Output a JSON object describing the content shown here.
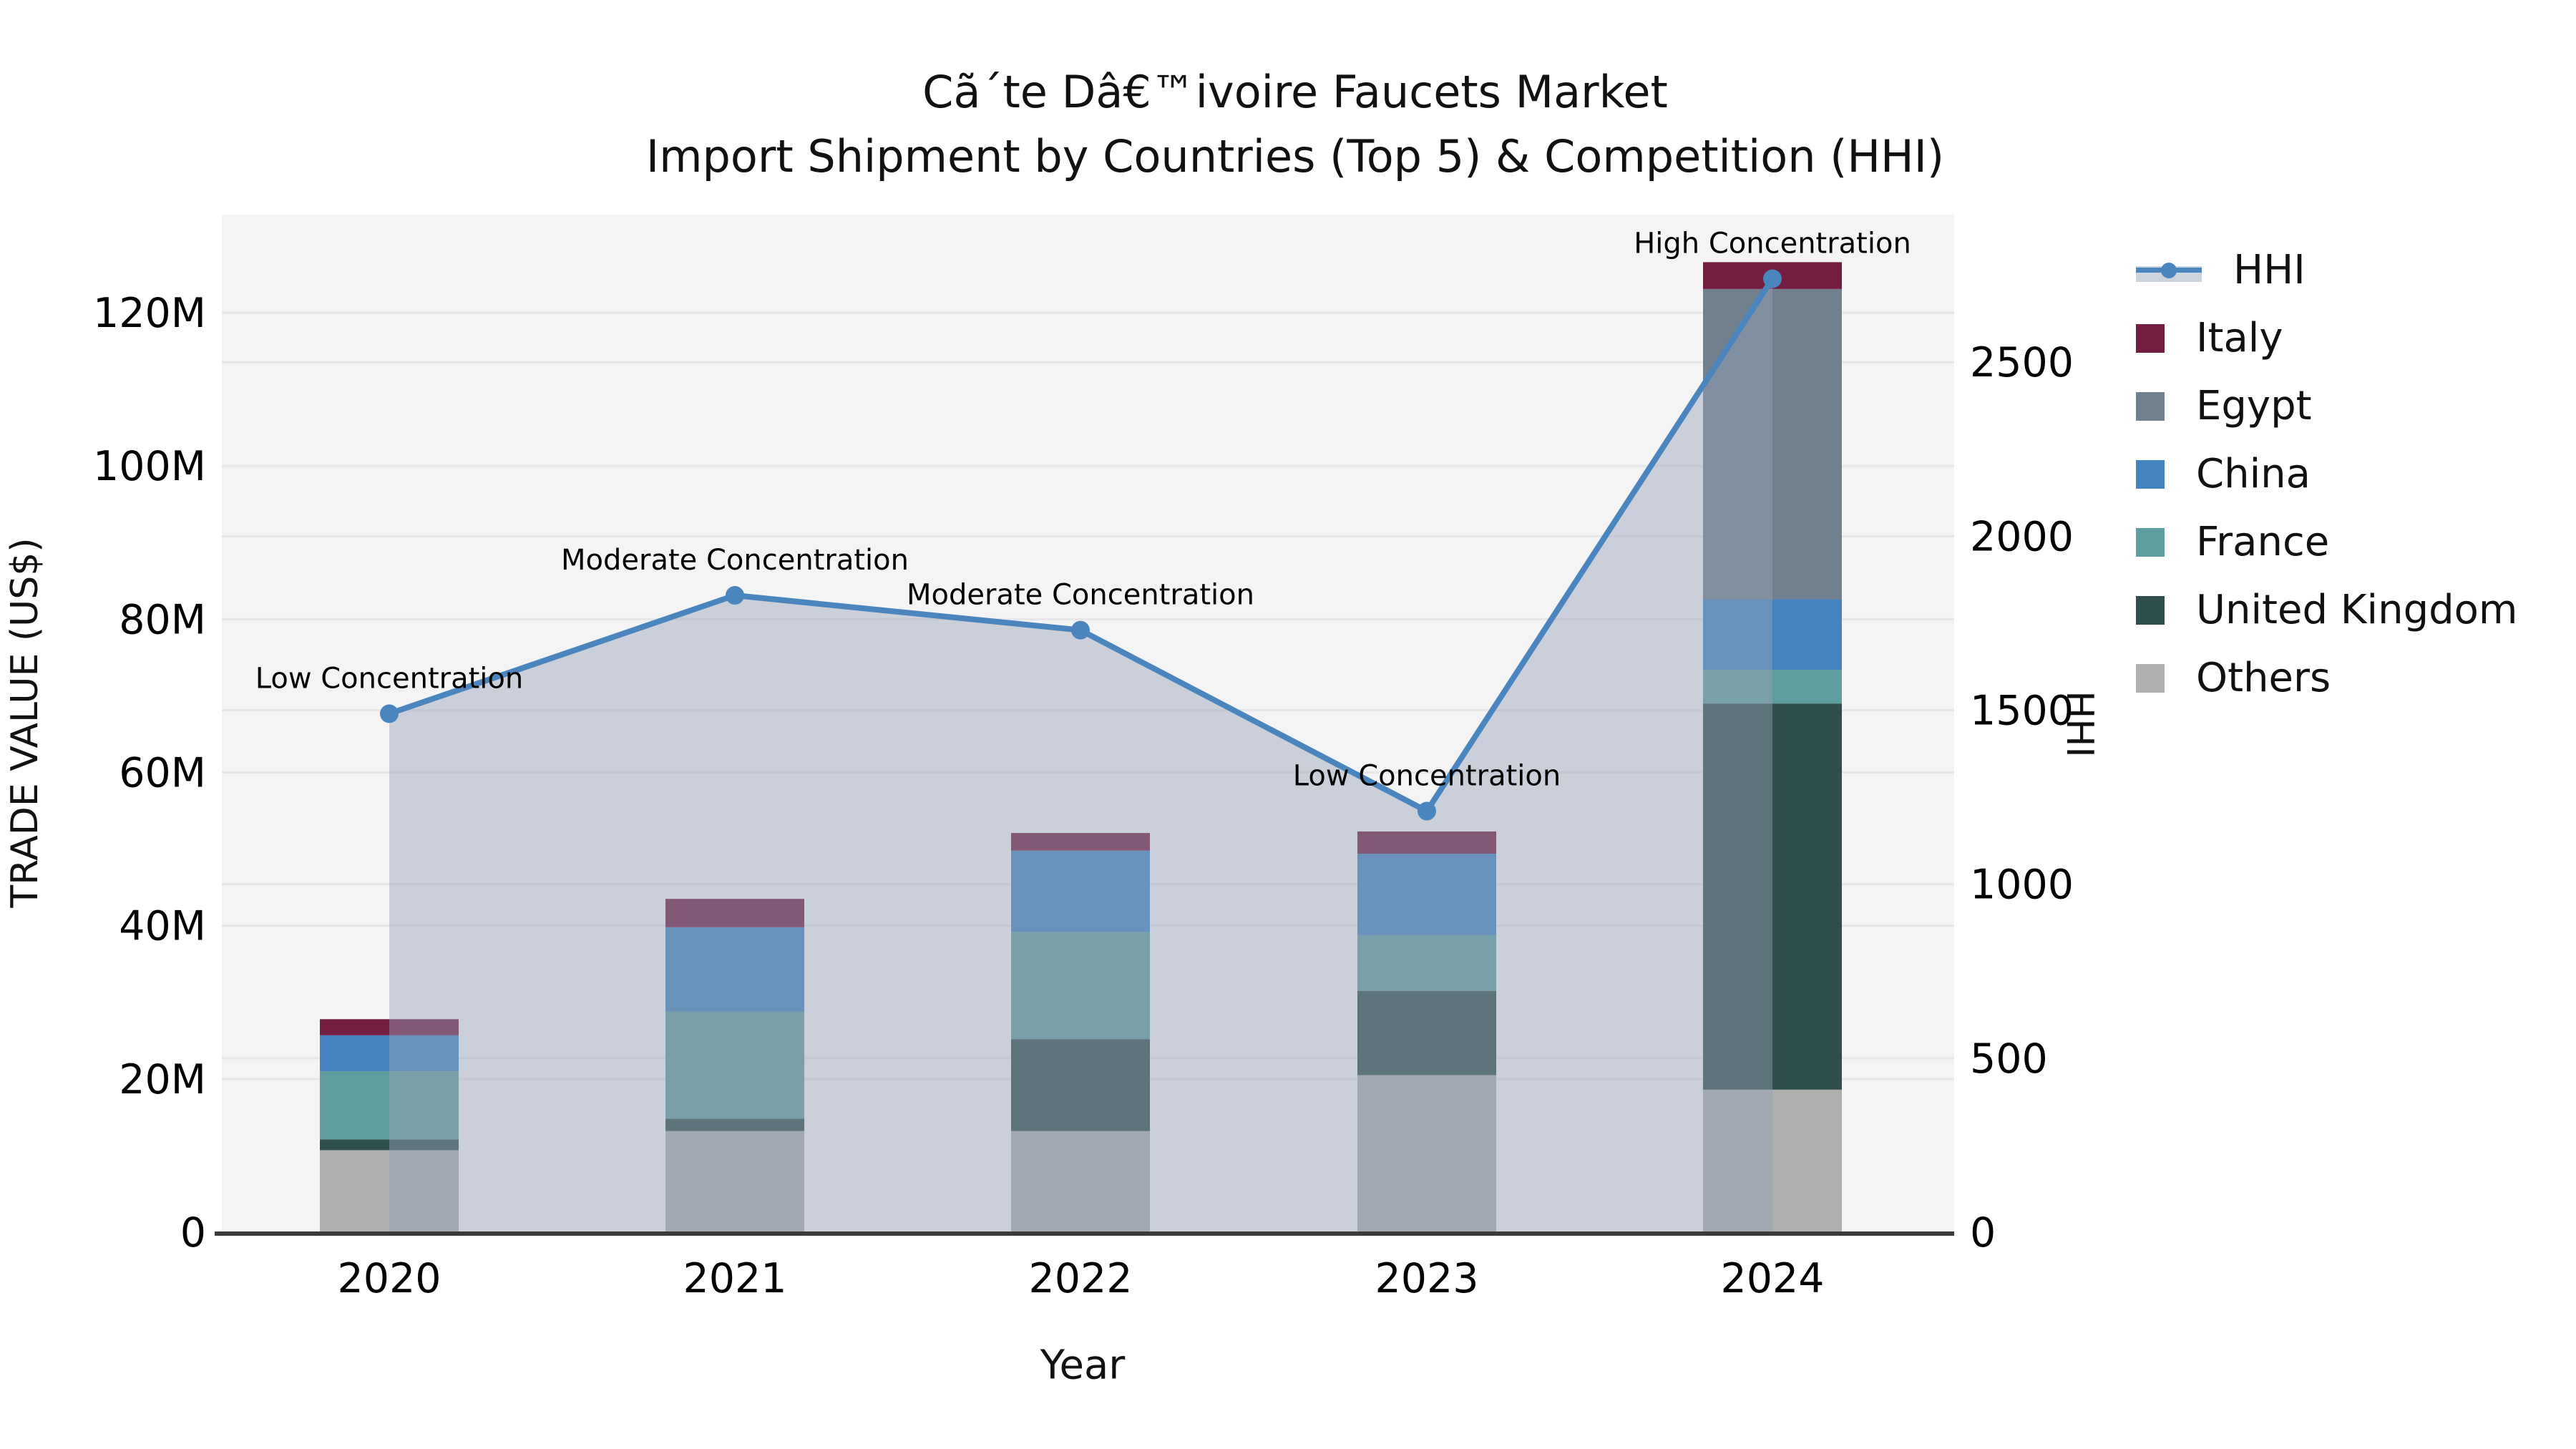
{
  "title": {
    "line1": "Cã´te Dâ€™ivoire Faucets Market",
    "line2": "Import Shipment by Countries (Top 5) & Competition (HHI)"
  },
  "axes": {
    "left": {
      "title": "TRADE VALUE (US$)",
      "ticks": [
        "0",
        "20M",
        "40M",
        "60M",
        "80M",
        "100M",
        "120M"
      ]
    },
    "right": {
      "title": "HHI",
      "ticks": [
        "0",
        "500",
        "1000",
        "1500",
        "2000",
        "2500"
      ]
    },
    "x": {
      "title": "Year"
    }
  },
  "legend": {
    "position": "right",
    "items": [
      {
        "label": "HHI",
        "type": "line",
        "color": "#4a86bd"
      },
      {
        "label": "Italy",
        "type": "patch",
        "color": "#731d40"
      },
      {
        "label": "Egypt",
        "type": "patch",
        "color": "#70808f"
      },
      {
        "label": "China",
        "type": "patch",
        "color": "#4383bf"
      },
      {
        "label": "France",
        "type": "patch",
        "color": "#5f9ea0"
      },
      {
        "label": "United Kingdom",
        "type": "patch",
        "color": "#2f4f4c"
      },
      {
        "label": "Others",
        "type": "patch",
        "color": "#aeb0ad"
      }
    ]
  },
  "chart_data": {
    "type": "bar",
    "subtype": "stacked-bars-with-line-overlay",
    "title": "Cã´te Dâ€™ivoire Faucets Market Import Shipment by Countries (Top 5) & Competition (HHI)",
    "xlabel": "Year",
    "ylabel_left": "TRADE VALUE (US$)",
    "ylabel_right": "HHI",
    "categories": [
      "2020",
      "2021",
      "2022",
      "2023",
      "2024"
    ],
    "bar_value_unit": "million US$",
    "series": [
      {
        "name": "Others",
        "color": "#aeb0ad",
        "values": [
          10.7,
          13.2,
          13.2,
          20.5,
          18.6
        ]
      },
      {
        "name": "United Kingdom",
        "color": "#2f4f4c",
        "values": [
          1.4,
          1.6,
          12.0,
          11.0,
          50.4
        ]
      },
      {
        "name": "France",
        "color": "#5f9ea0",
        "values": [
          8.9,
          14.0,
          14.0,
          7.3,
          4.4
        ]
      },
      {
        "name": "China",
        "color": "#4383bf",
        "values": [
          4.7,
          11.0,
          10.6,
          10.6,
          9.2
        ]
      },
      {
        "name": "Egypt",
        "color": "#70808f",
        "values": [
          0,
          0,
          0,
          0,
          40.5
        ]
      },
      {
        "name": "Italy",
        "color": "#731d40",
        "values": [
          2.1,
          3.7,
          2.3,
          2.9,
          3.5
        ]
      }
    ],
    "bar_totals": [
      27.8,
      43.5,
      52.1,
      52.3,
      126.6
    ],
    "line_series": {
      "name": "HHI",
      "color": "#4a86bd",
      "area_fill": "rgba(150,162,185,0.45)",
      "values": [
        1490,
        1830,
        1730,
        1210,
        2740
      ],
      "annotations": [
        "Low Concentration",
        "Moderate Concentration",
        "Moderate Concentration",
        "Low Concentration",
        "High Concentration"
      ]
    },
    "left_axis": {
      "min": 0,
      "max": 132.8,
      "tick_step_millions": 20
    },
    "right_axis": {
      "min": 0,
      "max": 2924,
      "tick_step": 500
    },
    "grid": true,
    "legend_position": "right"
  }
}
